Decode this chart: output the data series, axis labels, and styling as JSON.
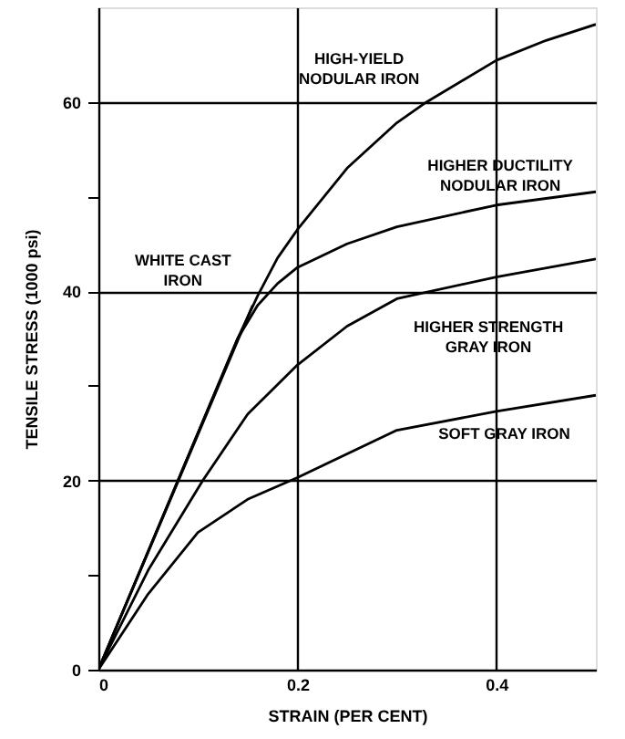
{
  "chart_data": {
    "type": "line",
    "xlabel": "STRAIN (PER CENT)",
    "ylabel": "TENSILE STRESS (1000 psi)",
    "xlim": [
      0,
      0.5
    ],
    "ylim": [
      0,
      70
    ],
    "xticks": [
      0,
      0.2,
      0.4
    ],
    "yticks": [
      0,
      {
        "value": 10,
        "label": null
      },
      20,
      {
        "value": 30,
        "label": null
      },
      40,
      {
        "value": 50,
        "label": null
      },
      60
    ],
    "grid": true,
    "legend": false,
    "marker": "none",
    "line_style": "solid",
    "series": [
      {
        "name": "HIGH-YIELD\nNODULAR IRON",
        "color": "#000000",
        "x": [
          0,
          0.1,
          0.14,
          0.16,
          0.18,
          0.2,
          0.25,
          0.3,
          0.33,
          0.4,
          0.45,
          0.5
        ],
        "values": [
          0,
          25,
          35,
          39.5,
          43.5,
          46.5,
          53,
          57.8,
          60,
          64.4,
          66.5,
          68.2
        ]
      },
      {
        "name": "HIGHER DUCTILITY\nNODULAR IRON",
        "color": "#000000",
        "x": [
          0,
          0.1,
          0.14,
          0.16,
          0.18,
          0.2,
          0.25,
          0.3,
          0.4,
          0.5
        ],
        "values": [
          0,
          25,
          35,
          38.5,
          40.8,
          42.5,
          45,
          46.8,
          49.1,
          50.5
        ]
      },
      {
        "name": "WHITE CAST\nIRON",
        "color": "#000000",
        "x": [
          0,
          0.155
        ],
        "values": [
          0,
          38.5
        ]
      },
      {
        "name": "HIGHER STRENGTH\nGRAY IRON",
        "color": "#000000",
        "x": [
          0,
          0.05,
          0.105,
          0.15,
          0.2,
          0.25,
          0.3,
          0.4,
          0.5
        ],
        "values": [
          0,
          10.5,
          20,
          27,
          32.2,
          36.3,
          39.2,
          41.5,
          43.4
        ]
      },
      {
        "name": "SOFT GRAY IRON",
        "color": "#000000",
        "x": [
          0,
          0.05,
          0.1,
          0.15,
          0.2,
          0.3,
          0.4,
          0.5
        ],
        "values": [
          0,
          8,
          14.5,
          18,
          20.3,
          25.3,
          27.3,
          29
        ]
      }
    ]
  }
}
